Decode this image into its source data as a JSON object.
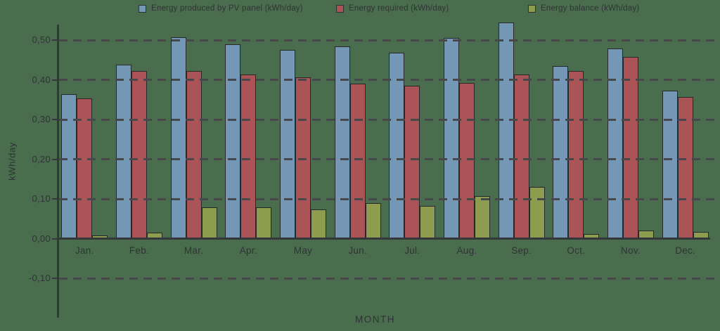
{
  "chart_data": {
    "type": "bar",
    "title": "",
    "xlabel": "MONTH",
    "ylabel": "kWh/day",
    "legend_position": "top",
    "grid": "horizontal-dashed",
    "decimal_separator": ",",
    "categories": [
      "Jan.",
      "Feb.",
      "Mar.",
      "Apr.",
      "May",
      "Jun.",
      "Jul.",
      "Aug.",
      "Sep.",
      "Oct.",
      "Nov.",
      "Dec."
    ],
    "series": [
      {
        "name": "Energy produced by PV panel (kWh/day)",
        "color": "#7497b6",
        "values": [
          0.363,
          0.438,
          0.508,
          0.49,
          0.475,
          0.485,
          0.468,
          0.505,
          0.545,
          0.434,
          0.478,
          0.373
        ]
      },
      {
        "name": "Energy required (kWh/day)",
        "color": "#aa5457",
        "values": [
          0.353,
          0.422,
          0.423,
          0.413,
          0.407,
          0.39,
          0.385,
          0.392,
          0.414,
          0.422,
          0.458,
          0.357
        ]
      },
      {
        "name": "Energy balance (kWh/day)",
        "color": "#8d9c4f",
        "values": [
          0.008,
          0.016,
          0.078,
          0.079,
          0.073,
          0.09,
          0.082,
          0.107,
          0.13,
          0.011,
          0.021,
          0.017
        ]
      }
    ],
    "yticks": [
      {
        "value": 0.5,
        "label": "0,50"
      },
      {
        "value": 0.4,
        "label": "0,40"
      },
      {
        "value": 0.3,
        "label": "0,30"
      },
      {
        "value": 0.2,
        "label": "0,20"
      },
      {
        "value": 0.1,
        "label": "0,10"
      },
      {
        "value": 0.0,
        "label": "0,00"
      },
      {
        "value": -0.1,
        "label": "-0,10"
      }
    ],
    "ylim": [
      -0.2,
      0.55
    ]
  },
  "colors": {
    "background": "#4a6e4d",
    "axis": "#35383b",
    "grid_dash": "#46484c",
    "text": "#2f3236"
  }
}
